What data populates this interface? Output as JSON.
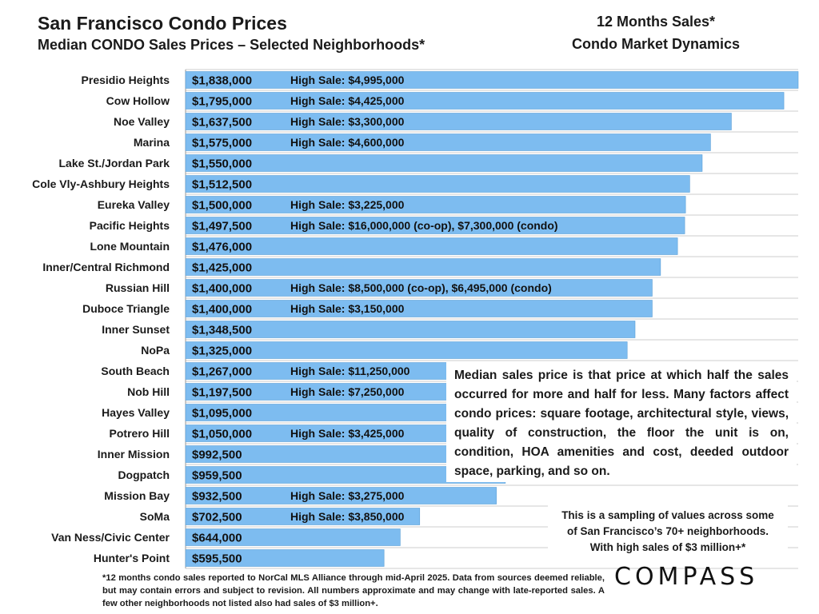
{
  "header": {
    "title": "San Francisco Condo Prices",
    "subtitle": "Median CONDO Sales Prices – Selected Neighborhoods*",
    "right_title_1": "12 Months Sales*",
    "right_title_2": "Condo Market Dynamics"
  },
  "chart_data": {
    "type": "bar",
    "orientation": "horizontal",
    "categories": [
      "Presidio Heights",
      "Cow Hollow",
      "Noe Valley",
      "Marina",
      "Lake St./Jordan Park",
      "Cole Vly-Ashbury Heights",
      "Eureka Valley",
      "Pacific Heights",
      "Lone Mountain",
      "Inner/Central Richmond",
      "Russian Hill",
      "Duboce Triangle",
      "Inner Sunset",
      "NoPa",
      "South Beach",
      "Nob Hill",
      "Hayes Valley",
      "Potrero Hill",
      "Inner Mission",
      "Dogpatch",
      "Mission Bay",
      "SoMa",
      "Van Ness/Civic Center",
      "Hunter's Point"
    ],
    "values": [
      1838000,
      1795000,
      1637500,
      1575000,
      1550000,
      1512500,
      1500000,
      1497500,
      1476000,
      1425000,
      1400000,
      1400000,
      1348500,
      1325000,
      1267000,
      1197500,
      1095000,
      1050000,
      992500,
      959500,
      932500,
      702500,
      644000,
      595500
    ],
    "value_labels": [
      "$1,838,000",
      "$1,795,000",
      "$1,637,500",
      "$1,575,000",
      "$1,550,000",
      "$1,512,500",
      "$1,500,000",
      "$1,497,500",
      "$1,476,000",
      "$1,425,000",
      "$1,400,000",
      "$1,400,000",
      "$1,348,500",
      "$1,325,000",
      "$1,267,000",
      "$1,197,500",
      "$1,095,000",
      "$1,050,000",
      "$992,500",
      "$959,500",
      "$932,500",
      "$702,500",
      "$644,000",
      "$595,500"
    ],
    "annotations": [
      "High Sale:  $4,995,000",
      "High Sale:  $4,425,000",
      "High Sale:  $3,300,000",
      "High Sale:  $4,600,000",
      "",
      "",
      "High Sale:  $3,225,000",
      "High Sale:  $16,000,000 (co-op), $7,300,000 (condo)",
      "",
      "",
      "High Sale:  $8,500,000 (co-op), $6,495,000 (condo)",
      "High Sale:  $3,150,000",
      "",
      "",
      "High Sale:  $11,250,000",
      "High Sale:  $7,250,000",
      "",
      "High Sale:  $3,425,000",
      "",
      "",
      "High Sale:  $3,275,000",
      "High Sale:  $3,850,000",
      "",
      ""
    ],
    "xlim": [
      0,
      1838000
    ],
    "grid": true,
    "colors": {
      "bar": "#7dbcf0",
      "bar_stroke": "#5a9ed6",
      "grid": "#cccccc"
    }
  },
  "notes": {
    "median_explanation": "Median sales price is that price at which half the sales occurred for more and half for less. Many factors affect condo prices: square footage, architectural style, views, quality of construction, the floor the unit is on, condition, HOA amenities and cost, deeded outdoor space, parking, and so on.",
    "sampling_line_1": "This is a sampling of values across some",
    "sampling_line_2": "of San Francisco’s 70+ neighborhoods.",
    "sampling_line_3": "With high sales of $3 million+*"
  },
  "footnote": "*12 months condo sales reported to NorCal MLS Alliance through mid-April 2025. Data from sources deemed reliable, but may contain errors and subject to revision. All numbers approximate and may change with late-reported sales. A few other neighborhoods not listed also had sales of $3 million+.",
  "brand": {
    "logo_text": "COMPASS"
  }
}
